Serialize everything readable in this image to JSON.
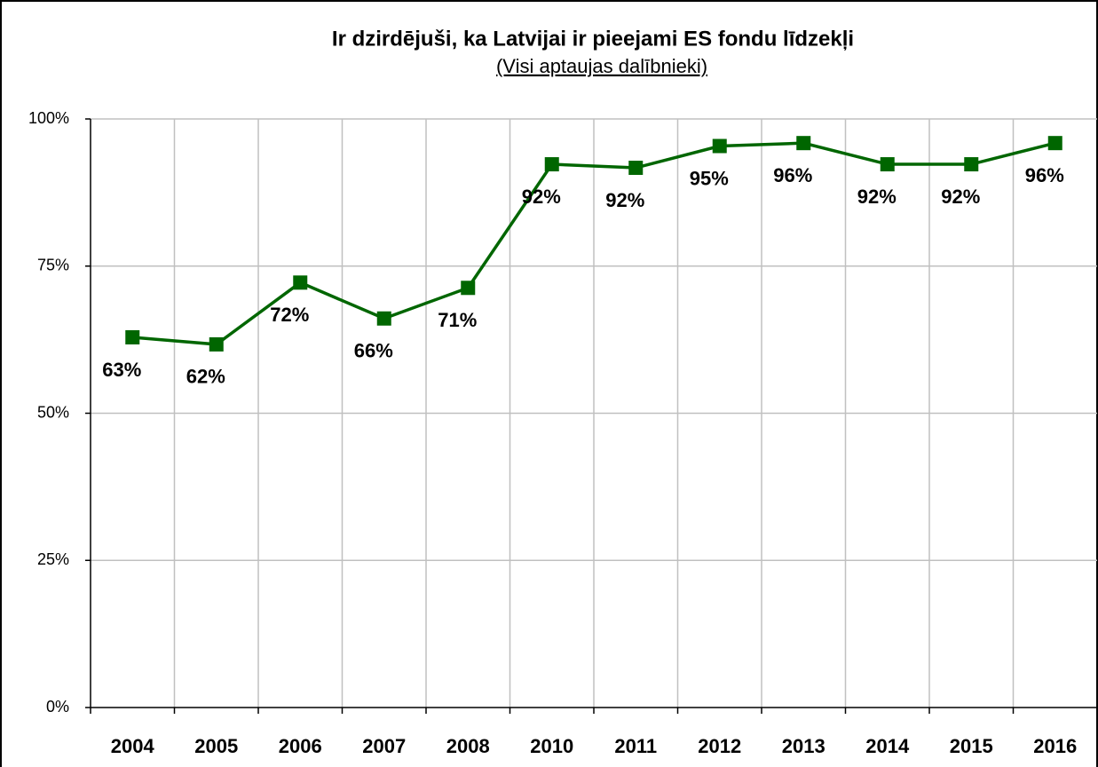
{
  "chart_data": {
    "type": "line",
    "title": "Ir dzirdējuši, ka Latvijai ir pieejami ES fondu līdzekļi",
    "subtitle": "(Visi aptaujas dalībnieki)",
    "categories": [
      "2004",
      "2005",
      "2006",
      "2007",
      "2008",
      "2010",
      "2011",
      "2012",
      "2013",
      "2014",
      "2015",
      "2016"
    ],
    "series": [
      {
        "name": null,
        "color": "#006600",
        "values": [
          62.9,
          61.7,
          72.2,
          66.1,
          71.3,
          92.3,
          91.7,
          95.4,
          95.9,
          92.3,
          92.3,
          95.9
        ],
        "value_labels": [
          "63%",
          "62%",
          "72%",
          "66%",
          "71%",
          "92%",
          "92%",
          "95%",
          "96%",
          "92%",
          "92%",
          "96%"
        ]
      }
    ],
    "ylim": [
      0,
      100
    ],
    "yticks": [
      {
        "value": 0,
        "label": "0%"
      },
      {
        "value": 25,
        "label": "25%"
      },
      {
        "value": 50,
        "label": "50%"
      },
      {
        "value": 75,
        "label": "75%"
      },
      {
        "value": 100,
        "label": "100%"
      }
    ],
    "grid": true
  }
}
